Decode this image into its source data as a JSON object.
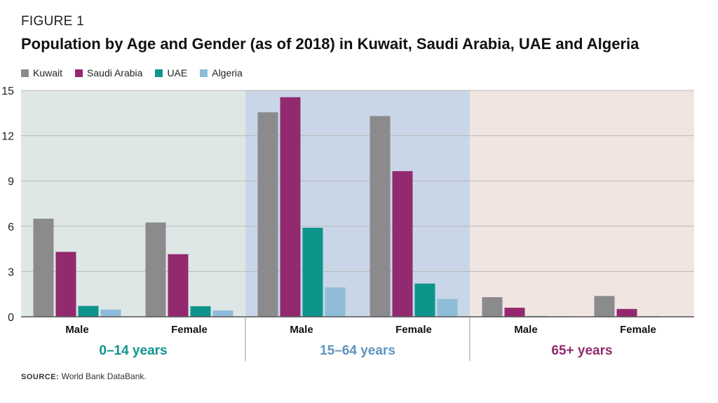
{
  "figure_label": "FIGURE 1",
  "title": "Population by Age and Gender (as of 2018) in Kuwait, Saudi Arabia, UAE and Algeria",
  "source_label": "SOURCE:",
  "source_text": "World Bank DataBank.",
  "chart_data": {
    "type": "bar",
    "ylim": [
      0,
      15
    ],
    "yticks": [
      0,
      3,
      6,
      9,
      12,
      15
    ],
    "grid": true,
    "legend_position": "top-left",
    "series": [
      {
        "name": "Kuwait",
        "color": "#8b8b8e",
        "values": [
          6.5,
          6.25,
          13.55,
          13.3,
          1.3,
          1.38
        ]
      },
      {
        "name": "Saudi Arabia",
        "color": "#93296f",
        "values": [
          4.3,
          4.15,
          14.55,
          9.65,
          0.6,
          0.52
        ]
      },
      {
        "name": "UAE",
        "color": "#0d958c",
        "values": [
          0.72,
          0.7,
          5.9,
          2.2,
          0.05,
          0.04
        ]
      },
      {
        "name": "Algeria",
        "color": "#8fbcd8",
        "values": [
          0.48,
          0.42,
          1.95,
          1.18,
          0.04,
          0.03
        ]
      }
    ],
    "categories": [
      "Male",
      "Female",
      "Male",
      "Female",
      "Male",
      "Female"
    ],
    "groups": [
      {
        "label": "0–14 years",
        "color": "#0d958c",
        "background": "#dfe6e6",
        "categories": [
          0,
          1
        ]
      },
      {
        "label": "15–64 years",
        "color": "#5f93be",
        "background": "#c9d6e8",
        "categories": [
          2,
          3
        ]
      },
      {
        "label": "65+ years",
        "color": "#93296f",
        "background": "#f1e5e1",
        "categories": [
          4,
          5
        ]
      }
    ]
  }
}
